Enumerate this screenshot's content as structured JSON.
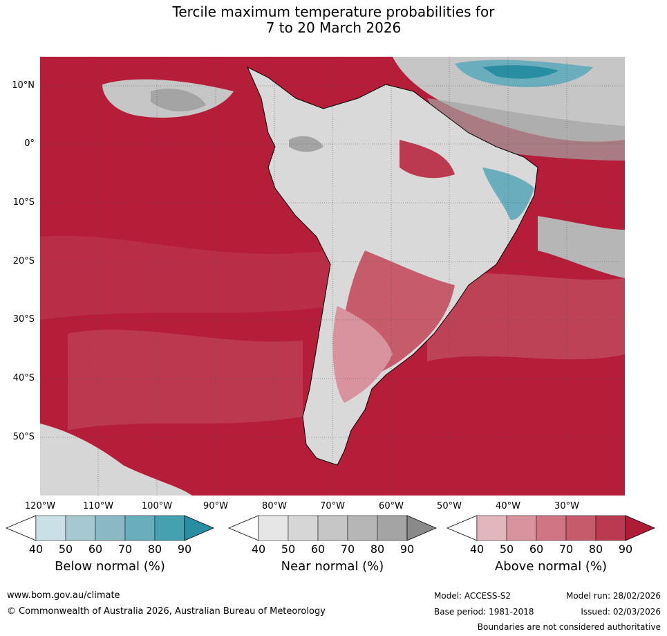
{
  "title": {
    "line1": "Tercile maximum temperature probabilities for",
    "line2": "7 to 20 March 2026"
  },
  "lat_labels": [
    "10°N",
    "0°",
    "10°S",
    "20°S",
    "30°S",
    "40°S",
    "50°S"
  ],
  "lon_labels": [
    "120°W",
    "110°W",
    "100°W",
    "90°W",
    "80°W",
    "70°W",
    "60°W",
    "50°W",
    "40°W",
    "30°W"
  ],
  "colorbars": [
    {
      "title": "Below normal (%)",
      "ticks": [
        "40",
        "50",
        "60",
        "70",
        "80",
        "90"
      ],
      "colors": [
        "#ffffff",
        "#c8e0e6",
        "#a6c8d0",
        "#8ab8c5",
        "#6aaebd",
        "#45a0b0",
        "#2a8ea3"
      ]
    },
    {
      "title": "Near normal (%)",
      "ticks": [
        "40",
        "50",
        "60",
        "70",
        "80",
        "90"
      ],
      "colors": [
        "#ffffff",
        "#e6e6e6",
        "#d6d6d6",
        "#c6c6c6",
        "#b6b6b6",
        "#a4a4a4",
        "#8a8a8a"
      ]
    },
    {
      "title": "Above normal (%)",
      "ticks": [
        "40",
        "50",
        "60",
        "70",
        "80",
        "90"
      ],
      "colors": [
        "#ffffff",
        "#e2b6bd",
        "#d8939e",
        "#cf7583",
        "#c55b6b",
        "#bc3a50",
        "#b01c38"
      ]
    }
  ],
  "footer": {
    "website": "www.bom.gov.au/climate",
    "copyright": "© Commonwealth of Australia 2026, Australian Bureau of Meteorology",
    "model": "Model: ACCESS-S2",
    "model_run": "Model run: 28/02/2026",
    "base_period": "Base period: 1981-2018",
    "issued": "Issued: 02/03/2026",
    "disclaimer": "Boundaries are not considered authoritative"
  },
  "map_colors": {
    "ocean_above": "#b51d38",
    "land_near": "#d9d9d9",
    "below": "#45a0b0",
    "coastline": "#000000",
    "borders": "#808080"
  }
}
